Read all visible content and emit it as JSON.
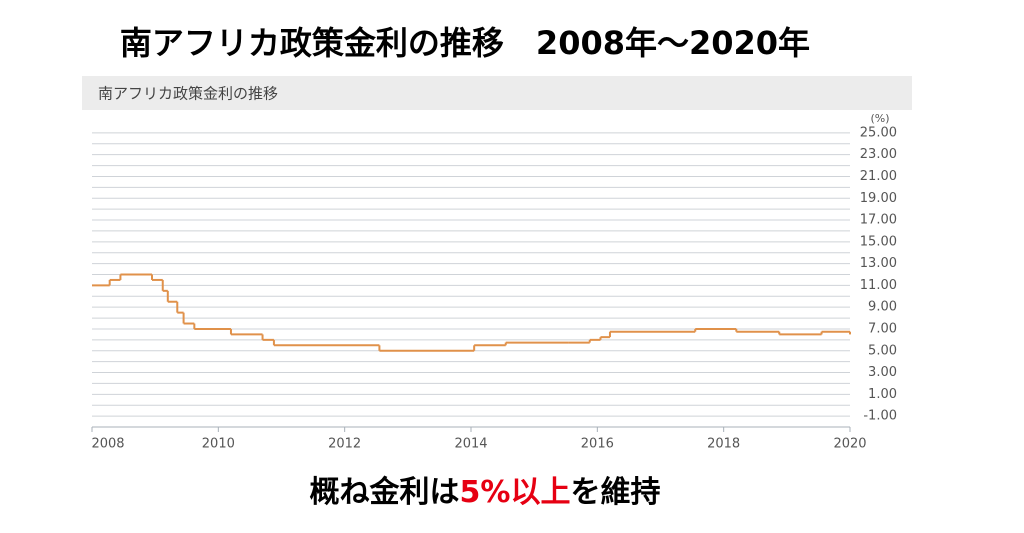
{
  "chart_data": {
    "type": "step",
    "title": "南アフリカ政策金利の推移　2008年～2020年",
    "subtitle": "南アフリカ政策金利の推移",
    "y_unit": "(%)",
    "caption": [
      "概ね金利は",
      "5%以上",
      "を維持"
    ],
    "caption_colors": [
      "#000000",
      "#e60012",
      "#000000"
    ],
    "color": "#e0914a",
    "x": [
      2008.0,
      2008.28,
      2008.45,
      2008.95,
      2009.12,
      2009.2,
      2009.35,
      2009.45,
      2009.62,
      2010.2,
      2010.7,
      2010.88,
      2012.55,
      2014.05,
      2014.55,
      2015.55,
      2015.88,
      2016.05,
      2016.2,
      2017.55,
      2018.2,
      2018.88,
      2019.55,
      2020.0
    ],
    "values": [
      11.0,
      11.5,
      12.0,
      11.5,
      10.5,
      9.5,
      8.5,
      7.5,
      7.0,
      6.5,
      6.0,
      5.5,
      5.0,
      5.5,
      5.75,
      5.75,
      6.0,
      6.25,
      6.75,
      7.0,
      6.75,
      6.5,
      6.75,
      6.5
    ],
    "xlim": [
      2008,
      2020
    ],
    "xticks": [
      2008,
      2010,
      2012,
      2014,
      2016,
      2018,
      2020
    ],
    "ylim": [
      -2,
      26
    ],
    "yticks": [
      {
        "value": -1,
        "label": "-1.00"
      },
      {
        "value": 1,
        "label": "1.00"
      },
      {
        "value": 3,
        "label": "3.00"
      },
      {
        "value": 5,
        "label": "5.00"
      },
      {
        "value": 7,
        "label": "7.00"
      },
      {
        "value": 9,
        "label": "9.00"
      },
      {
        "value": 11,
        "label": "11.00"
      },
      {
        "value": 13,
        "label": "13.00"
      },
      {
        "value": 15,
        "label": "15.00"
      },
      {
        "value": 17,
        "label": "17.00"
      },
      {
        "value": 19,
        "label": "19.00"
      },
      {
        "value": 21,
        "label": "21.00"
      },
      {
        "value": 23,
        "label": "23.00"
      },
      {
        "value": 25,
        "label": "25.00"
      }
    ],
    "grid": true
  }
}
